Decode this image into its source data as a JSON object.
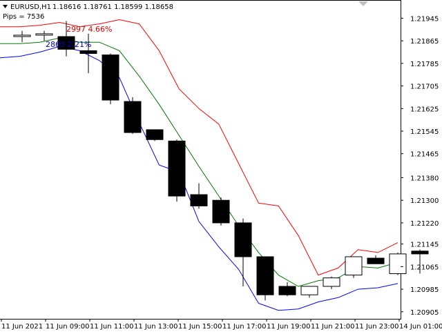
{
  "header": {
    "symbol_label": "EURUSD,H1",
    "ohlc": "1.18616 1.18761 1.18599 1.18658",
    "pips_label": "Pips = 7536",
    "menu_icon": "triangle-down-icon"
  },
  "annotations": {
    "upper_text": "2997 4.66%",
    "lower_text": "2863 2.21%",
    "upper_color": "#e00000",
    "lower_color": "#0000c8"
  },
  "colors": {
    "bear": "#000000",
    "bull": "#ffffff",
    "upper": "#ff0000",
    "middle": "#007800",
    "lower": "#0000ff",
    "axis": "#000000"
  },
  "chart_data": {
    "type": "candlestick",
    "ylim": [
      1.2088,
      1.2199
    ],
    "y_ticks": [
      "1.21945",
      "1.21865",
      "1.21785",
      "1.21705",
      "1.21625",
      "1.21545",
      "1.21465",
      "1.21380",
      "1.21300",
      "1.21220",
      "1.21145",
      "1.21065",
      "1.20985",
      "1.20905"
    ],
    "x_ticks": [
      "11 Jun 2021",
      "11 Jun 09:00",
      "11 Jun 11:00",
      "11 Jun 13:00",
      "11 Jun 15:00",
      "11 Jun 17:00",
      "11 Jun 19:00",
      "11 Jun 21:00",
      "11 Jun 23:00",
      "14 Jun 01:00"
    ],
    "candles": [
      {
        "o": 1.2188,
        "h": 1.219,
        "l": 1.2186,
        "c": 1.21885
      },
      {
        "o": 1.21885,
        "h": 1.219,
        "l": 1.21865,
        "c": 1.2189
      },
      {
        "o": 1.2188,
        "h": 1.21935,
        "l": 1.2181,
        "c": 1.21835
      },
      {
        "o": 1.2183,
        "h": 1.2189,
        "l": 1.2175,
        "c": 1.2182
      },
      {
        "o": 1.21815,
        "h": 1.2182,
        "l": 1.2164,
        "c": 1.21655
      },
      {
        "o": 1.2165,
        "h": 1.21665,
        "l": 1.21535,
        "c": 1.2154
      },
      {
        "o": 1.2155,
        "h": 1.2155,
        "l": 1.2151,
        "c": 1.21515
      },
      {
        "o": 1.2151,
        "h": 1.21515,
        "l": 1.21295,
        "c": 1.21315
      },
      {
        "o": 1.2132,
        "h": 1.2136,
        "l": 1.2127,
        "c": 1.2128
      },
      {
        "o": 1.213,
        "h": 1.2131,
        "l": 1.2121,
        "c": 1.2122
      },
      {
        "o": 1.2122,
        "h": 1.21235,
        "l": 1.20995,
        "c": 1.211
      },
      {
        "o": 1.211,
        "h": 1.211,
        "l": 1.20945,
        "c": 1.20965
      },
      {
        "o": 1.20995,
        "h": 1.2101,
        "l": 1.2096,
        "c": 1.20965
      },
      {
        "o": 1.20965,
        "h": 1.20995,
        "l": 1.20955,
        "c": 1.20995
      },
      {
        "o": 1.20995,
        "h": 1.2103,
        "l": 1.20985,
        "c": 1.21025
      },
      {
        "o": 1.21035,
        "h": 1.211,
        "l": 1.21025,
        "c": 1.211
      },
      {
        "o": 1.21095,
        "h": 1.21105,
        "l": 1.21075,
        "c": 1.21075
      },
      {
        "o": 1.2104,
        "h": 1.21115,
        "l": 1.21035,
        "c": 1.2111
      },
      {
        "o": 1.2112,
        "h": 1.21125,
        "l": 1.2104,
        "c": 1.2111
      }
    ],
    "upper_band": [
      1.21915,
      1.21915,
      1.2192,
      1.2193,
      1.21915,
      1.21925,
      1.2194,
      1.21925,
      1.2183,
      1.21695,
      1.21625,
      1.2157,
      1.2143,
      1.2129,
      1.2128,
      1.21175,
      1.21035,
      1.2106,
      1.21125,
      1.21115,
      1.2115
    ],
    "middle_band": [
      1.21855,
      1.21855,
      1.2186,
      1.21875,
      1.2186,
      1.2186,
      1.2183,
      1.2174,
      1.2164,
      1.2153,
      1.2142,
      1.21315,
      1.2121,
      1.21115,
      1.21035,
      1.20995,
      1.21015,
      1.21025,
      1.21065,
      1.2106,
      1.2108
    ],
    "lower_band": [
      1.21805,
      1.2181,
      1.21825,
      1.21845,
      1.2183,
      1.21795,
      1.21735,
      1.21575,
      1.21425,
      1.214,
      1.21225,
      1.21135,
      1.21055,
      1.20935,
      1.2091,
      1.20915,
      1.2094,
      1.20955,
      1.20985,
      1.2099,
      1.21005
    ]
  }
}
